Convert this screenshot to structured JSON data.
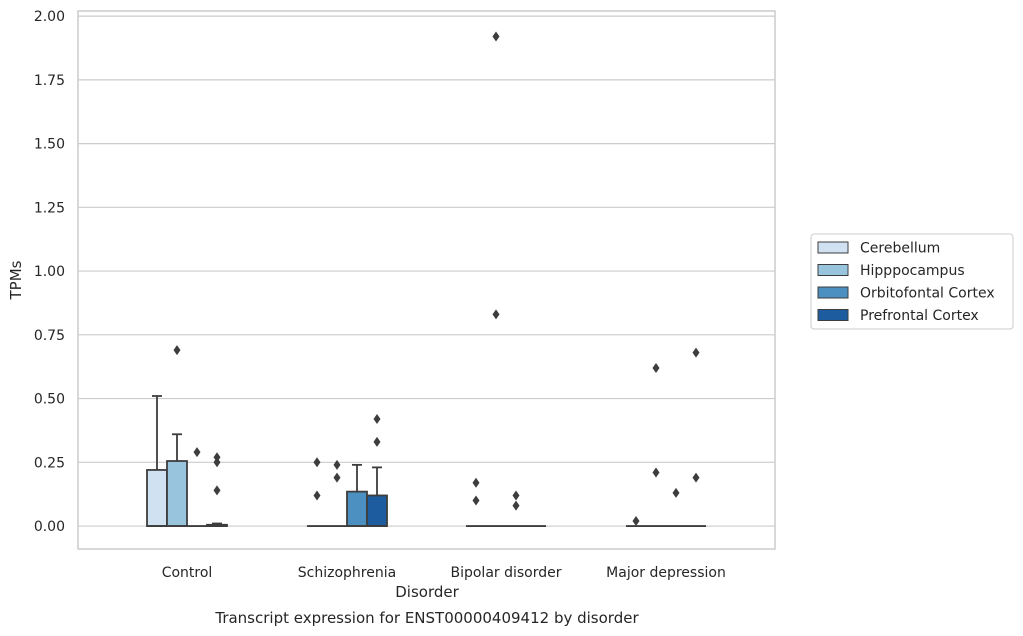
{
  "caption": "Transcript expression for ENST00000409412 by disorder",
  "colors": {
    "Cerebellum": "#d0e1f2",
    "Hipppocampus": "#99c4de",
    "Orbitofontal Cortex": "#4b90c1",
    "Prefrontal Cortex": "#1d5d9f",
    "outline": "#3d3d3d",
    "grid": "#cccccc"
  },
  "chart_data": {
    "type": "box",
    "xlabel": "Disorder",
    "ylabel": "TPMs",
    "ylim": [
      -0.09,
      2.02
    ],
    "yticks": [
      "0.00",
      "0.25",
      "0.50",
      "0.75",
      "1.00",
      "1.25",
      "1.50",
      "1.75",
      "2.00"
    ],
    "grid": "horizontal",
    "legend_placement": "right",
    "categories": [
      "Control",
      "Schizophrenia",
      "Bipolar disorder",
      "Major depression"
    ],
    "series": [
      {
        "name": "Cerebellum",
        "boxes": [
          {
            "q1": 0.0,
            "median": 0.0,
            "q3": 0.22,
            "whisker_low": 0.0,
            "whisker_high": 0.51,
            "outliers": []
          },
          {
            "q1": 0.0,
            "median": 0.0,
            "q3": 0.0,
            "whisker_low": 0.0,
            "whisker_high": 0.0,
            "outliers": [
              0.25,
              0.12
            ]
          },
          {
            "q1": 0.0,
            "median": 0.0,
            "q3": 0.0,
            "whisker_low": 0.0,
            "whisker_high": 0.0,
            "outliers": [
              0.17,
              0.1
            ]
          },
          {
            "q1": 0.0,
            "median": 0.0,
            "q3": 0.0,
            "whisker_low": 0.0,
            "whisker_high": 0.0,
            "outliers": [
              0.02
            ]
          }
        ]
      },
      {
        "name": "Hipppocampus",
        "boxes": [
          {
            "q1": 0.0,
            "median": 0.0,
            "q3": 0.255,
            "whisker_low": 0.0,
            "whisker_high": 0.36,
            "outliers": [
              0.69
            ]
          },
          {
            "q1": 0.0,
            "median": 0.0,
            "q3": 0.0,
            "whisker_low": 0.0,
            "whisker_high": 0.0,
            "outliers": [
              0.24,
              0.19
            ]
          },
          {
            "q1": 0.0,
            "median": 0.0,
            "q3": 0.0,
            "whisker_low": 0.0,
            "whisker_high": 0.0,
            "outliers": [
              1.92,
              0.83
            ]
          },
          {
            "q1": 0.0,
            "median": 0.0,
            "q3": 0.0,
            "whisker_low": 0.0,
            "whisker_high": 0.0,
            "outliers": [
              0.62,
              0.21
            ]
          }
        ]
      },
      {
        "name": "Orbitofontal Cortex",
        "boxes": [
          {
            "q1": 0.0,
            "median": 0.0,
            "q3": 0.0,
            "whisker_low": 0.0,
            "whisker_high": 0.0,
            "outliers": [
              0.29
            ]
          },
          {
            "q1": 0.0,
            "median": 0.0,
            "q3": 0.135,
            "whisker_low": 0.0,
            "whisker_high": 0.24,
            "outliers": []
          },
          {
            "q1": 0.0,
            "median": 0.0,
            "q3": 0.0,
            "whisker_low": 0.0,
            "whisker_high": 0.0,
            "outliers": [
              0.12,
              0.08
            ]
          },
          {
            "q1": 0.0,
            "median": 0.0,
            "q3": 0.0,
            "whisker_low": 0.0,
            "whisker_high": 0.0,
            "outliers": [
              0.13
            ]
          }
        ]
      },
      {
        "name": "Prefrontal Cortex",
        "boxes": [
          {
            "q1": 0.0,
            "median": 0.0,
            "q3": 0.005,
            "whisker_low": 0.0,
            "whisker_high": 0.01,
            "outliers": [
              0.27,
              0.25,
              0.14
            ]
          },
          {
            "q1": 0.0,
            "median": 0.0,
            "q3": 0.12,
            "whisker_low": 0.0,
            "whisker_high": 0.23,
            "outliers": [
              0.42,
              0.33
            ]
          },
          {
            "q1": 0.0,
            "median": 0.0,
            "q3": 0.0,
            "whisker_low": 0.0,
            "whisker_high": 0.0,
            "outliers": []
          },
          {
            "q1": 0.0,
            "median": 0.0,
            "q3": 0.0,
            "whisker_low": 0.0,
            "whisker_high": 0.0,
            "outliers": [
              0.68,
              0.19
            ]
          }
        ]
      }
    ]
  }
}
